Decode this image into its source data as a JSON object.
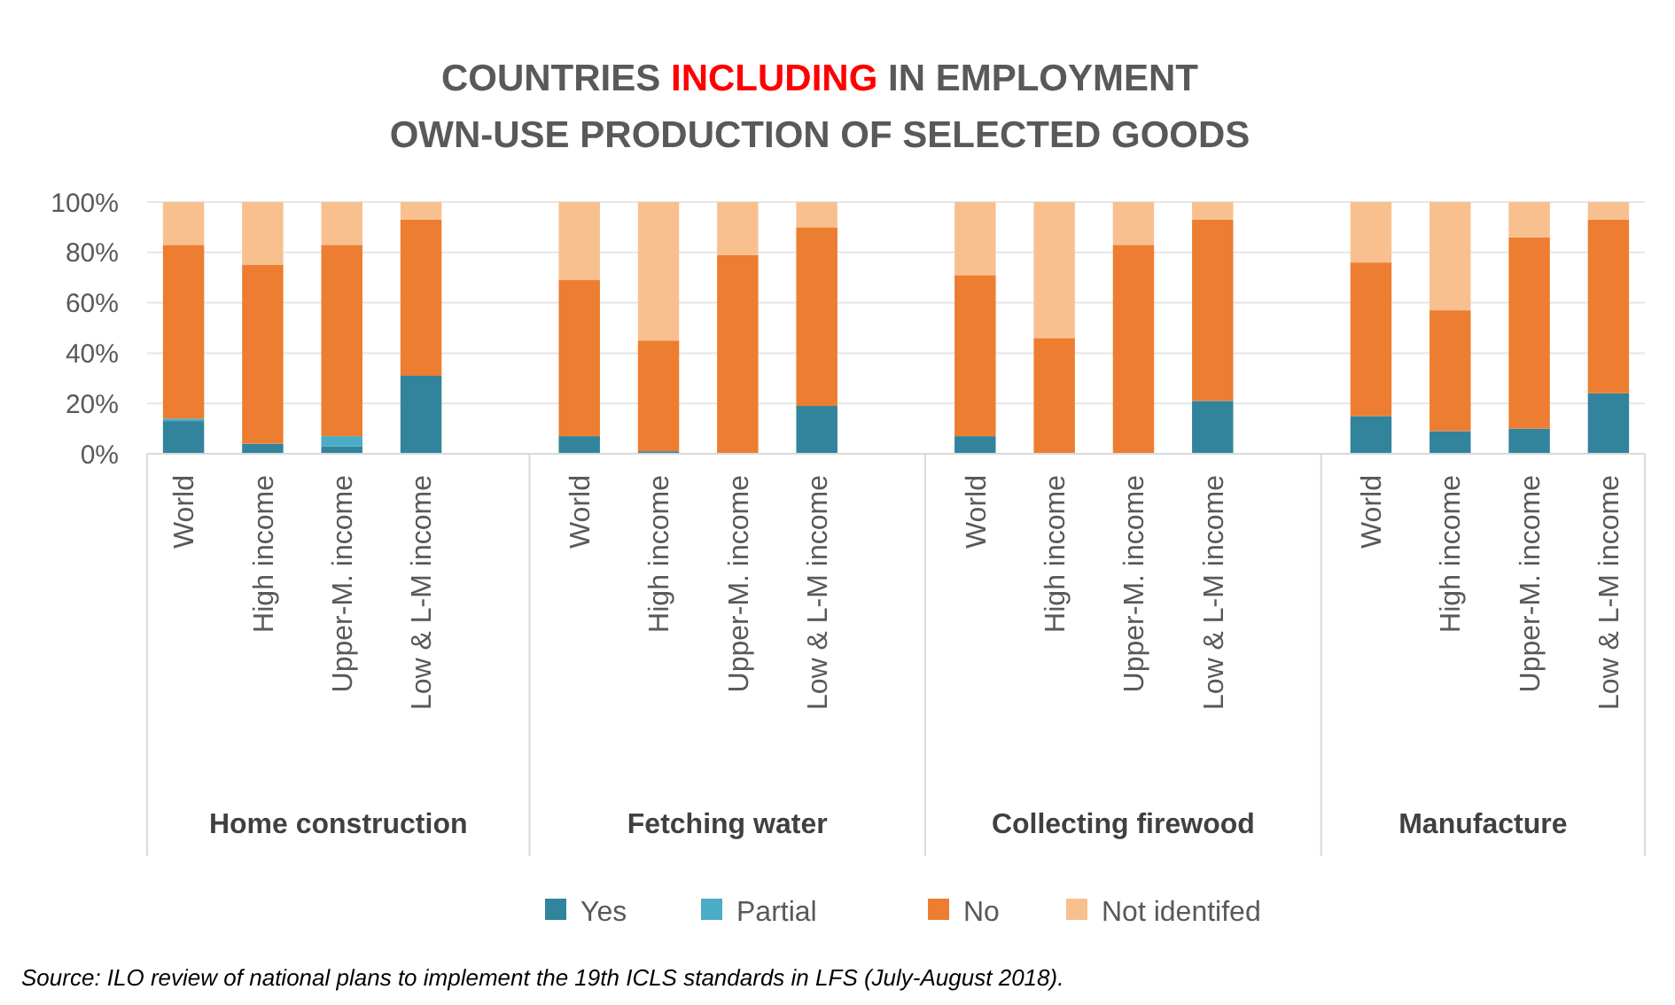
{
  "chart_data": {
    "type": "bar",
    "stacked": true,
    "title": "COUNTRIES INCLUDING IN EMPLOYMENT\nOWN-USE PRODUCTION OF SELECTED GOODS",
    "categories": [
      "World",
      "High income",
      "Upper-M. income",
      "Low & L-M income",
      null,
      "World",
      "High income",
      "Upper-M. income",
      "Low & L-M income",
      null,
      "World",
      "High income",
      "Upper-M. income",
      "Low & L-M income",
      null,
      "World",
      "High income",
      "Upper-M. income",
      "Low & L-M income"
    ],
    "series": [
      {
        "name": "Yes",
        "color": "#31849b",
        "values": [
          13,
          4,
          3,
          31,
          null,
          7,
          1,
          0,
          19,
          null,
          7,
          0,
          0,
          21,
          null,
          15,
          9,
          10,
          24
        ]
      },
      {
        "name": "Partial",
        "color": "#4bacc6",
        "values": [
          1,
          0,
          4,
          0,
          null,
          0,
          0,
          0,
          0,
          null,
          0,
          0,
          0,
          0,
          null,
          0,
          0,
          0,
          0
        ]
      },
      {
        "name": "No",
        "color": "#ed7d31",
        "values": [
          69,
          71,
          76,
          62,
          null,
          62,
          44,
          79,
          71,
          null,
          64,
          46,
          83,
          72,
          null,
          61,
          48,
          76,
          69
        ]
      },
      {
        "name": "Not identifed",
        "color": "#f9c08f",
        "values": [
          17,
          25,
          17,
          7,
          null,
          31,
          55,
          21,
          10,
          null,
          29,
          54,
          17,
          7,
          null,
          24,
          43,
          14,
          7
        ]
      }
    ],
    "ylim": [
      0,
      100
    ],
    "yticks": [
      {
        "value": 0,
        "label": "0%"
      },
      {
        "value": 20,
        "label": "20%"
      },
      {
        "value": 40,
        "label": "40%"
      },
      {
        "value": 60,
        "label": "60%"
      },
      {
        "value": 80,
        "label": "80%"
      },
      {
        "value": 100,
        "label": "100%"
      }
    ],
    "grid": "y",
    "legend": "bottom",
    "annotations": [
      "Home construction",
      "Fetching water",
      "Collecting firewood",
      "Manufacture",
      "Source: ILO review of national plans to implement the 19th ICLS standards in LFS (July-August 2018)."
    ]
  }
}
